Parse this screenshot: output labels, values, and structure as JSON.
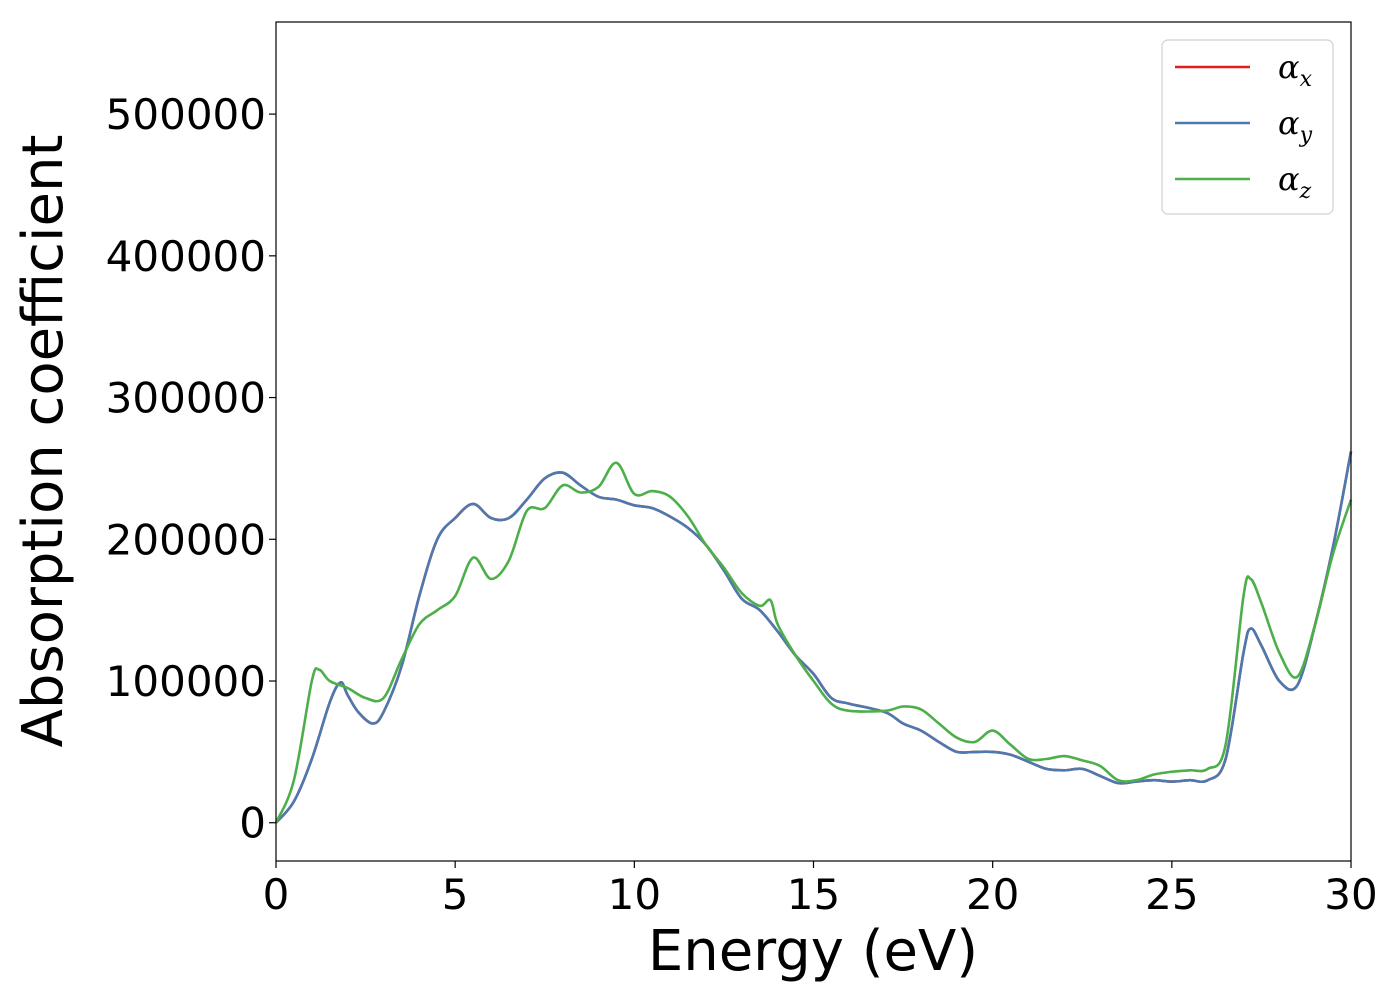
{
  "chart_data": {
    "type": "line",
    "title": "",
    "xlabel": "Energy (eV)",
    "ylabel": "Absorption coefficient",
    "xlim": [
      0,
      30
    ],
    "ylim": [
      -27000,
      565000
    ],
    "xticks": [
      0,
      5,
      10,
      15,
      20,
      25,
      30
    ],
    "yticks": [
      0,
      100000,
      200000,
      300000,
      400000,
      500000
    ],
    "grid": false,
    "legend_position": "top-right",
    "legend_symbol": "α",
    "series": [
      {
        "name": "α_x",
        "legend_sub": "x",
        "color": "#e41a1c",
        "x": [
          0,
          0.5,
          1.0,
          1.5,
          1.8,
          2.0,
          2.3,
          2.7,
          3.0,
          3.5,
          4.0,
          4.5,
          5.0,
          5.5,
          6.0,
          6.5,
          7.0,
          7.5,
          8.0,
          8.5,
          9.0,
          9.5,
          10.0,
          10.5,
          11.0,
          11.5,
          12.0,
          12.5,
          13.0,
          13.5,
          14.0,
          14.5,
          15.0,
          15.5,
          16.0,
          17.0,
          17.5,
          18.0,
          18.5,
          19.0,
          19.5,
          20.0,
          20.5,
          21.0,
          21.5,
          22.0,
          22.5,
          23.0,
          23.5,
          24.0,
          24.5,
          25.0,
          25.5,
          26.0,
          26.5,
          27.0,
          27.2,
          27.5,
          28.0,
          28.5,
          29.0,
          29.5,
          30.0
        ],
        "values": [
          0,
          15000,
          45000,
          85000,
          99000,
          90000,
          78000,
          70000,
          78000,
          110000,
          160000,
          200000,
          215000,
          225000,
          215000,
          215000,
          228000,
          243000,
          247000,
          238000,
          230000,
          228000,
          224000,
          222000,
          216000,
          208000,
          196000,
          178000,
          158000,
          150000,
          135000,
          118000,
          105000,
          88000,
          84000,
          78000,
          70000,
          65000,
          57000,
          50000,
          50000,
          50000,
          48000,
          43000,
          38000,
          37000,
          38000,
          33000,
          28000,
          29000,
          30000,
          29000,
          30000,
          30000,
          45000,
          120000,
          137000,
          125000,
          100000,
          97000,
          140000,
          195000,
          262000
        ]
      },
      {
        "name": "α_y",
        "legend_sub": "y",
        "color": "#4a7ab0",
        "x": [
          0,
          0.5,
          1.0,
          1.5,
          1.8,
          2.0,
          2.3,
          2.7,
          3.0,
          3.5,
          4.0,
          4.5,
          5.0,
          5.5,
          6.0,
          6.5,
          7.0,
          7.5,
          8.0,
          8.5,
          9.0,
          9.5,
          10.0,
          10.5,
          11.0,
          11.5,
          12.0,
          12.5,
          13.0,
          13.5,
          14.0,
          14.5,
          15.0,
          15.5,
          16.0,
          17.0,
          17.5,
          18.0,
          18.5,
          19.0,
          19.5,
          20.0,
          20.5,
          21.0,
          21.5,
          22.0,
          22.5,
          23.0,
          23.5,
          24.0,
          24.5,
          25.0,
          25.5,
          26.0,
          26.5,
          27.0,
          27.2,
          27.5,
          28.0,
          28.5,
          29.0,
          29.5,
          30.0
        ],
        "values": [
          0,
          15000,
          45000,
          85000,
          99000,
          90000,
          78000,
          70000,
          78000,
          110000,
          160000,
          200000,
          215000,
          225000,
          215000,
          215000,
          228000,
          243000,
          247000,
          238000,
          230000,
          228000,
          224000,
          222000,
          216000,
          208000,
          196000,
          178000,
          158000,
          150000,
          135000,
          118000,
          105000,
          88000,
          84000,
          78000,
          70000,
          65000,
          57000,
          50000,
          50000,
          50000,
          48000,
          43000,
          38000,
          37000,
          38000,
          33000,
          28000,
          29000,
          30000,
          29000,
          30000,
          30000,
          45000,
          120000,
          137000,
          125000,
          100000,
          97000,
          140000,
          195000,
          262000
        ]
      },
      {
        "name": "α_z",
        "legend_sub": "z",
        "color": "#4daf4a",
        "x": [
          0,
          0.5,
          1.0,
          1.2,
          1.5,
          2.0,
          2.5,
          3.0,
          3.5,
          4.0,
          4.5,
          5.0,
          5.5,
          6.0,
          6.5,
          7.0,
          7.5,
          8.0,
          8.5,
          9.0,
          9.5,
          10.0,
          10.5,
          11.0,
          11.5,
          12.0,
          12.5,
          13.0,
          13.5,
          13.8,
          14.0,
          14.5,
          15.0,
          15.5,
          16.0,
          17.0,
          17.5,
          18.0,
          18.5,
          19.0,
          19.5,
          20.0,
          20.5,
          21.0,
          21.5,
          22.0,
          22.5,
          23.0,
          23.5,
          24.0,
          24.5,
          25.0,
          25.5,
          26.0,
          26.5,
          27.0,
          27.2,
          27.5,
          28.0,
          28.5,
          29.0,
          29.5,
          30.0
        ],
        "values": [
          0,
          30000,
          100000,
          108000,
          100000,
          95000,
          88000,
          88000,
          115000,
          140000,
          150000,
          160000,
          187000,
          172000,
          185000,
          220000,
          222000,
          238000,
          233000,
          237000,
          254000,
          232000,
          234000,
          230000,
          216000,
          196000,
          180000,
          162000,
          153000,
          157000,
          140000,
          118000,
          100000,
          84000,
          79000,
          79000,
          82000,
          80000,
          70000,
          60000,
          57000,
          65000,
          55000,
          45000,
          45000,
          47000,
          44000,
          40000,
          30000,
          30000,
          34000,
          36000,
          37000,
          38000,
          55000,
          160000,
          172000,
          155000,
          120000,
          103000,
          140000,
          190000,
          228000
        ]
      }
    ]
  }
}
